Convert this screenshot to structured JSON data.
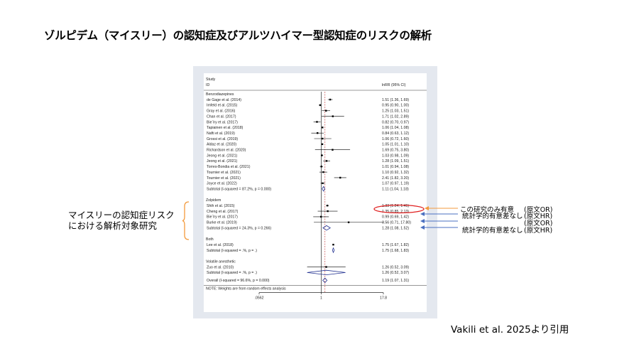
{
  "page_title": "ゾルピデム（マイスリー）の認知症及びアルツハイマー型認知症のリスクの解析",
  "side_label_lines": [
    "マイスリーの認知症リスク",
    "における解析対象研究"
  ],
  "citation": "Vakili et al. 2025より引用",
  "annotations": [
    {
      "text": "この研究のみ有意",
      "source": "(原文OR)"
    },
    {
      "text": "統計学的有意差なし",
      "source": "(原文HR)"
    },
    {
      "text": "",
      "source": "(原文OR)"
    },
    {
      "text": "統計学的有意差なし",
      "source": "(原文HR)"
    }
  ],
  "colors": {
    "highlight_oval": "#e02020",
    "arrow_orange": "#f39a3c",
    "arrow_blue": "#4a6fc0",
    "diamond": "#1f2f8f"
  },
  "chart_data": {
    "type": "forest",
    "header_study": "Study",
    "header_id": "ID",
    "header_effect": "lnRR (95% CI)",
    "x_ticks": [
      ".0562",
      "1",
      "17.8"
    ],
    "x_scale": "log",
    "xlim": [
      0.0562,
      17.8
    ],
    "null_line": 1,
    "overall_line": 1.19,
    "footer_note": "NOTE: Weights are from random effects analysis",
    "groups": [
      {
        "name": "Benzodiazepines",
        "studies": [
          {
            "label": "de Gage et al. (2014)",
            "ci_text": "1.51 (1.36, 1.69)",
            "est": 1.51,
            "lo": 1.36,
            "hi": 1.69
          },
          {
            "label": "Imfeld et al. (2015)",
            "ci_text": "0.95 (0.90, 1.00)",
            "est": 0.95,
            "lo": 0.9,
            "hi": 1.0
          },
          {
            "label": "Gray et al. (2016)",
            "ci_text": "1.25 (1.03, 1.51)",
            "est": 1.25,
            "lo": 1.03,
            "hi": 1.51
          },
          {
            "label": "Chan et al. (2017)",
            "ci_text": "1.71 (1.02, 2.89)",
            "est": 1.71,
            "lo": 1.02,
            "hi": 2.89
          },
          {
            "label": "Bie´lry et al. (2017)",
            "ci_text": "0.82 (0.70, 0.97)",
            "est": 0.82,
            "lo": 0.7,
            "hi": 0.97
          },
          {
            "label": "Tapiainen et al. (2018)",
            "ci_text": "1.06 (1.04, 1.08)",
            "est": 1.06,
            "lo": 1.04,
            "hi": 1.08
          },
          {
            "label": "Nafti et al. (2019)",
            "ci_text": "0.84 (0.63, 1.12)",
            "est": 0.84,
            "lo": 0.63,
            "hi": 1.12
          },
          {
            "label": "Grossi et al. (2019)",
            "ci_text": "1.06 (0.72, 1.60)",
            "est": 1.06,
            "lo": 0.72,
            "hi": 1.6
          },
          {
            "label": "Aldaz et al. (2020)",
            "ci_text": "1.05 (1.01, 1.10)",
            "est": 1.05,
            "lo": 1.01,
            "hi": 1.1
          },
          {
            "label": "Richardson et al. (2020)",
            "ci_text": "1.69 (0.75, 3.80)",
            "est": 1.69,
            "lo": 0.75,
            "hi": 3.8
          },
          {
            "label": "Jeong et al. (2021)",
            "ci_text": "1.03 (0.98, 1.09)",
            "est": 1.03,
            "lo": 0.98,
            "hi": 1.09
          },
          {
            "label": "Jeong et al. (2021)",
            "ci_text": "1.28 (1.09, 1.51)",
            "est": 1.28,
            "lo": 1.09,
            "hi": 1.51
          },
          {
            "label": "Torres-Bondia et al. (2021)",
            "ci_text": "1.01 (0.94, 1.08)",
            "est": 1.01,
            "lo": 0.94,
            "hi": 1.08
          },
          {
            "label": "Tournier et al. (2021)",
            "ci_text": "1.10 (0.92, 1.32)",
            "est": 1.1,
            "lo": 0.92,
            "hi": 1.32
          },
          {
            "label": "Tournier et al. (2021)",
            "ci_text": "2.41 (1.82, 3.20)",
            "est": 2.41,
            "lo": 1.82,
            "hi": 3.2
          },
          {
            "label": "Joyce et al. (2022)",
            "ci_text": "1.07 (0.97, 1.19)",
            "est": 1.07,
            "lo": 0.97,
            "hi": 1.19
          }
        ],
        "subtotal": {
          "label": "Subtotal  (I-squared = 87.2%, p = 0.000)",
          "ci_text": "1.11 (1.04, 1.18)",
          "est": 1.11,
          "lo": 1.04,
          "hi": 1.18
        }
      },
      {
        "name": "Zolpidem",
        "studies": [
          {
            "label": "Shih et al. (2015)",
            "ci_text": "1.33 (1.24, 1.41)",
            "est": 1.33,
            "lo": 1.24,
            "hi": 1.41
          },
          {
            "label": "Cheng et al. (2017)",
            "ci_text": "1.35 (0.85, 2.13)",
            "est": 1.35,
            "lo": 0.85,
            "hi": 2.13
          },
          {
            "label": "Bie´lry et al. (2017)",
            "ci_text": "0.99 (0.69, 1.42)",
            "est": 0.99,
            "lo": 0.69,
            "hi": 1.42
          },
          {
            "label": "Burke et al. (2019)",
            "ci_text": "3.56 (0.71, 17.80)",
            "est": 3.56,
            "lo": 0.71,
            "hi": 17.8
          }
        ],
        "subtotal": {
          "label": "Subtotal  (I-squared = 24.3%, p = 0.266)",
          "ci_text": "1.28 (1.08, 1.52)",
          "est": 1.28,
          "lo": 1.08,
          "hi": 1.52
        }
      },
      {
        "name": "Both",
        "studies": [
          {
            "label": "Lee et al. (2018)",
            "ci_text": "1.75 (1.67, 1.82)",
            "est": 1.75,
            "lo": 1.67,
            "hi": 1.82
          }
        ],
        "subtotal": {
          "label": "Subtotal  (I-squared = .%, p = .)",
          "ci_text": "1.75 (1.68, 1.83)",
          "est": 1.75,
          "lo": 1.68,
          "hi": 1.83
        }
      },
      {
        "name": "Volatile anesthetic",
        "studies": [
          {
            "label": "Zuo et al. (2010)",
            "ci_text": "1.26 (0.52, 3.09)",
            "est": 1.26,
            "lo": 0.52,
            "hi": 3.09
          }
        ],
        "subtotal": {
          "label": "Subtotal  (I-squared = .%, p = .)",
          "ci_text": "1.26 (0.52, 3.07)",
          "est": 1.26,
          "lo": 0.52,
          "hi": 3.07
        }
      }
    ],
    "overall": {
      "label": "Overall  (I-squared = 96.6%, p = 0.000)",
      "ci_text": "1.19 (1.07, 1.31)",
      "est": 1.19,
      "lo": 1.07,
      "hi": 1.31
    }
  }
}
